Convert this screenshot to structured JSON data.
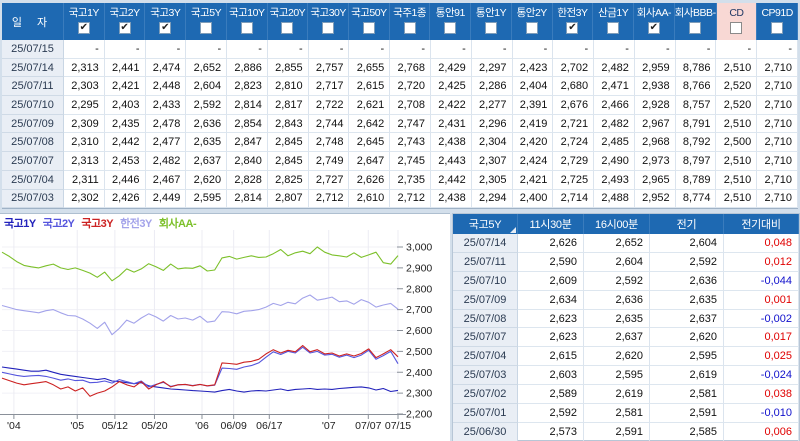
{
  "colors": {
    "header_blue": "#1e69b2",
    "cd_highlight_pink": "#f8d8d4",
    "date_cell_bg": "#e9eef5",
    "positive_red": "#e00000",
    "negative_blue": "#1010cc",
    "page_bg": "#d3dfeb",
    "series_kt1y": "#2222bb",
    "series_kt2y": "#5555dd",
    "series_kt3y": "#cc2222",
    "series_hanjun3y": "#a3a3ea",
    "series_aa": "#7cc02a"
  },
  "top_table": {
    "date_header": "일 자",
    "columns": [
      {
        "label": "국고1Y",
        "checked": true,
        "highlight": false
      },
      {
        "label": "국고2Y",
        "checked": true,
        "highlight": false
      },
      {
        "label": "국고3Y",
        "checked": true,
        "highlight": false
      },
      {
        "label": "국고5Y",
        "checked": false,
        "highlight": false
      },
      {
        "label": "국고10Y",
        "checked": false,
        "highlight": false
      },
      {
        "label": "국고20Y",
        "checked": false,
        "highlight": false
      },
      {
        "label": "국고30Y",
        "checked": false,
        "highlight": false
      },
      {
        "label": "국고50Y",
        "checked": false,
        "highlight": false
      },
      {
        "label": "국주1종",
        "checked": false,
        "highlight": false
      },
      {
        "label": "통안91",
        "checked": false,
        "highlight": false
      },
      {
        "label": "통안1Y",
        "checked": false,
        "highlight": false
      },
      {
        "label": "통안2Y",
        "checked": false,
        "highlight": false
      },
      {
        "label": "한전3Y",
        "checked": true,
        "highlight": false
      },
      {
        "label": "산금1Y",
        "checked": false,
        "highlight": false
      },
      {
        "label": "회사AA-",
        "checked": true,
        "highlight": false
      },
      {
        "label": "회사BBB-",
        "checked": false,
        "highlight": false
      },
      {
        "label": "CD",
        "checked": false,
        "highlight": true
      },
      {
        "label": "CP91D",
        "checked": false,
        "highlight": false
      }
    ],
    "rows": [
      {
        "date": "25/07/15",
        "values": [
          "-",
          "-",
          "-",
          "-",
          "-",
          "-",
          "-",
          "-",
          "-",
          "-",
          "-",
          "-",
          "-",
          "-",
          "-",
          "-",
          "-",
          "-"
        ]
      },
      {
        "date": "25/07/14",
        "values": [
          "2,313",
          "2,441",
          "2,474",
          "2,652",
          "2,886",
          "2,855",
          "2,757",
          "2,655",
          "2,768",
          "2,429",
          "2,297",
          "2,423",
          "2,702",
          "2,482",
          "2,959",
          "8,786",
          "2,510",
          "2,710"
        ]
      },
      {
        "date": "25/07/11",
        "values": [
          "2,303",
          "2,421",
          "2,448",
          "2,604",
          "2,823",
          "2,810",
          "2,717",
          "2,615",
          "2,720",
          "2,425",
          "2,286",
          "2,404",
          "2,680",
          "2,471",
          "2,938",
          "8,766",
          "2,520",
          "2,710"
        ]
      },
      {
        "date": "25/07/10",
        "values": [
          "2,295",
          "2,403",
          "2,433",
          "2,592",
          "2,814",
          "2,817",
          "2,722",
          "2,621",
          "2,708",
          "2,422",
          "2,277",
          "2,391",
          "2,676",
          "2,466",
          "2,928",
          "8,757",
          "2,520",
          "2,710"
        ]
      },
      {
        "date": "25/07/09",
        "values": [
          "2,309",
          "2,435",
          "2,478",
          "2,636",
          "2,854",
          "2,843",
          "2,744",
          "2,642",
          "2,747",
          "2,431",
          "2,296",
          "2,419",
          "2,721",
          "2,482",
          "2,967",
          "8,791",
          "2,510",
          "2,710"
        ]
      },
      {
        "date": "25/07/08",
        "values": [
          "2,310",
          "2,442",
          "2,477",
          "2,635",
          "2,847",
          "2,845",
          "2,748",
          "2,645",
          "2,743",
          "2,438",
          "2,304",
          "2,420",
          "2,724",
          "2,485",
          "2,968",
          "8,792",
          "2,500",
          "2,710"
        ]
      },
      {
        "date": "25/07/07",
        "values": [
          "2,313",
          "2,453",
          "2,482",
          "2,637",
          "2,840",
          "2,845",
          "2,749",
          "2,647",
          "2,745",
          "2,443",
          "2,307",
          "2,424",
          "2,729",
          "2,490",
          "2,973",
          "8,797",
          "2,510",
          "2,710"
        ]
      },
      {
        "date": "25/07/04",
        "values": [
          "2,311",
          "2,446",
          "2,467",
          "2,620",
          "2,828",
          "2,825",
          "2,727",
          "2,626",
          "2,735",
          "2,442",
          "2,305",
          "2,421",
          "2,725",
          "2,493",
          "2,965",
          "8,789",
          "2,510",
          "2,710"
        ]
      },
      {
        "date": "25/07/03",
        "values": [
          "2,302",
          "2,426",
          "2,449",
          "2,595",
          "2,814",
          "2,807",
          "2,712",
          "2,610",
          "2,712",
          "2,438",
          "2,294",
          "2,400",
          "2,714",
          "2,488",
          "2,952",
          "8,774",
          "2,510",
          "2,710"
        ]
      }
    ]
  },
  "chart_data": {
    "type": "line",
    "title": "",
    "xlabel": "",
    "ylabel": "",
    "ylim": [
      2.2,
      3.05
    ],
    "grid": true,
    "legend_position": "top-left",
    "y_ticks": [
      {
        "label": "3,000",
        "v": 3.0
      },
      {
        "label": "2,900",
        "v": 2.9
      },
      {
        "label": "2,800",
        "v": 2.8
      },
      {
        "label": "2,700",
        "v": 2.7
      },
      {
        "label": "2,600",
        "v": 2.6
      },
      {
        "label": "2,500",
        "v": 2.5
      },
      {
        "label": "2,400",
        "v": 2.4
      },
      {
        "label": "2,300",
        "v": 2.3
      },
      {
        "label": "2,200",
        "v": 2.2
      }
    ],
    "x_ticks": [
      {
        "label": "'04",
        "f": 0.03
      },
      {
        "label": "'05",
        "f": 0.19
      },
      {
        "label": "05/12",
        "f": 0.285
      },
      {
        "label": "05/20",
        "f": 0.385
      },
      {
        "label": "'06",
        "f": 0.505
      },
      {
        "label": "06/09",
        "f": 0.585
      },
      {
        "label": "06/17",
        "f": 0.675
      },
      {
        "label": "'07",
        "f": 0.825
      },
      {
        "label": "07/07",
        "f": 0.925
      },
      {
        "label": "07/15",
        "f": 1.0
      }
    ],
    "series": [
      {
        "name": "국고1Y",
        "color": "#2222bb",
        "values": [
          2.425,
          2.42,
          2.415,
          2.41,
          2.405,
          2.405,
          2.41,
          2.4,
          2.39,
          2.385,
          2.38,
          2.375,
          2.37,
          2.365,
          2.37,
          2.358,
          2.355,
          2.35,
          2.345,
          2.35,
          2.335,
          2.33,
          2.325,
          2.32,
          2.318,
          2.315,
          2.312,
          2.31,
          2.308,
          2.305,
          2.312,
          2.318,
          2.31,
          2.305,
          2.31,
          2.312,
          2.31,
          2.315,
          2.32,
          2.312,
          2.318,
          2.32,
          2.322,
          2.318,
          2.32,
          2.318,
          2.322,
          2.325,
          2.328,
          2.33,
          2.325,
          2.315,
          2.322,
          2.308,
          2.313
        ]
      },
      {
        "name": "국고2Y",
        "color": "#5555dd",
        "values": [
          2.4,
          2.392,
          2.385,
          2.38,
          2.383,
          2.385,
          2.38,
          2.372,
          2.362,
          2.368,
          2.36,
          2.362,
          2.35,
          2.352,
          2.358,
          2.348,
          2.365,
          2.355,
          2.345,
          2.358,
          2.33,
          2.342,
          2.352,
          2.332,
          2.34,
          2.342,
          2.336,
          2.342,
          2.334,
          2.338,
          2.42,
          2.418,
          2.414,
          2.425,
          2.432,
          2.445,
          2.472,
          2.498,
          2.485,
          2.5,
          2.492,
          2.52,
          2.492,
          2.5,
          2.482,
          2.486,
          2.472,
          2.482,
          2.47,
          2.482,
          2.505,
          2.462,
          2.48,
          2.5,
          2.441
        ]
      },
      {
        "name": "국고3Y",
        "color": "#cc2222",
        "values": [
          2.372,
          2.36,
          2.348,
          2.34,
          2.345,
          2.35,
          2.355,
          2.34,
          2.32,
          2.33,
          2.31,
          2.325,
          2.285,
          2.3,
          2.31,
          2.33,
          2.355,
          2.34,
          2.33,
          2.355,
          2.32,
          2.34,
          2.355,
          2.33,
          2.34,
          2.342,
          2.335,
          2.342,
          2.335,
          2.34,
          2.445,
          2.442,
          2.438,
          2.448,
          2.452,
          2.462,
          2.488,
          2.508,
          2.492,
          2.505,
          2.498,
          2.528,
          2.498,
          2.508,
          2.488,
          2.492,
          2.478,
          2.488,
          2.478,
          2.49,
          2.512,
          2.47,
          2.488,
          2.508,
          2.474
        ]
      },
      {
        "name": "한전3Y",
        "color": "#a3a3ea",
        "values": [
          2.72,
          2.71,
          2.7,
          2.695,
          2.69,
          2.685,
          2.695,
          2.7,
          2.685,
          2.672,
          2.67,
          2.655,
          2.635,
          2.61,
          2.64,
          2.58,
          2.61,
          2.65,
          2.635,
          2.66,
          2.68,
          2.665,
          2.645,
          2.672,
          2.655,
          2.66,
          2.65,
          2.668,
          2.64,
          2.645,
          2.69,
          2.688,
          2.68,
          2.692,
          2.695,
          2.7,
          2.712,
          2.73,
          2.72,
          2.735,
          2.728,
          2.755,
          2.77,
          2.745,
          2.752,
          2.76,
          2.738,
          2.742,
          2.726,
          2.748,
          2.735,
          2.712,
          2.722,
          2.73,
          2.702
        ]
      },
      {
        "name": "회사AA-",
        "color": "#7cc02a",
        "values": [
          2.975,
          2.955,
          2.93,
          2.912,
          2.905,
          2.9,
          2.91,
          2.918,
          2.9,
          2.892,
          2.9,
          2.888,
          2.875,
          2.855,
          2.88,
          2.838,
          2.862,
          2.895,
          2.88,
          2.895,
          2.92,
          2.905,
          2.888,
          2.918,
          2.895,
          2.9,
          2.898,
          2.91,
          2.885,
          2.89,
          2.948,
          2.955,
          2.942,
          2.95,
          2.958,
          2.95,
          2.952,
          2.968,
          2.988,
          2.958,
          2.972,
          2.98,
          2.968,
          3.0,
          2.975,
          2.962,
          2.958,
          2.952,
          2.972,
          2.95,
          2.962,
          2.975,
          2.925,
          2.918,
          2.959
        ]
      }
    ]
  },
  "side_table": {
    "headers": [
      "국고5Y",
      "11시30분",
      "16시00분",
      "전기",
      "전기대비"
    ],
    "rows": [
      {
        "date": "25/07/14",
        "t1130": "2,626",
        "t1600": "2,652",
        "prev": "2,604",
        "diff": "0,048"
      },
      {
        "date": "25/07/11",
        "t1130": "2,590",
        "t1600": "2,604",
        "prev": "2,592",
        "diff": "0,012"
      },
      {
        "date": "25/07/10",
        "t1130": "2,609",
        "t1600": "2,592",
        "prev": "2,636",
        "diff": "-0,044"
      },
      {
        "date": "25/07/09",
        "t1130": "2,634",
        "t1600": "2,636",
        "prev": "2,635",
        "diff": "0,001"
      },
      {
        "date": "25/07/08",
        "t1130": "2,623",
        "t1600": "2,635",
        "prev": "2,637",
        "diff": "-0,002"
      },
      {
        "date": "25/07/07",
        "t1130": "2,623",
        "t1600": "2,637",
        "prev": "2,620",
        "diff": "0,017"
      },
      {
        "date": "25/07/04",
        "t1130": "2,615",
        "t1600": "2,620",
        "prev": "2,595",
        "diff": "0,025"
      },
      {
        "date": "25/07/03",
        "t1130": "2,603",
        "t1600": "2,595",
        "prev": "2,619",
        "diff": "-0,024"
      },
      {
        "date": "25/07/02",
        "t1130": "2,589",
        "t1600": "2,619",
        "prev": "2,581",
        "diff": "0,038"
      },
      {
        "date": "25/07/01",
        "t1130": "2,592",
        "t1600": "2,581",
        "prev": "2,591",
        "diff": "-0,010"
      },
      {
        "date": "25/06/30",
        "t1130": "2,573",
        "t1600": "2,591",
        "prev": "2,585",
        "diff": "0,006"
      }
    ]
  }
}
